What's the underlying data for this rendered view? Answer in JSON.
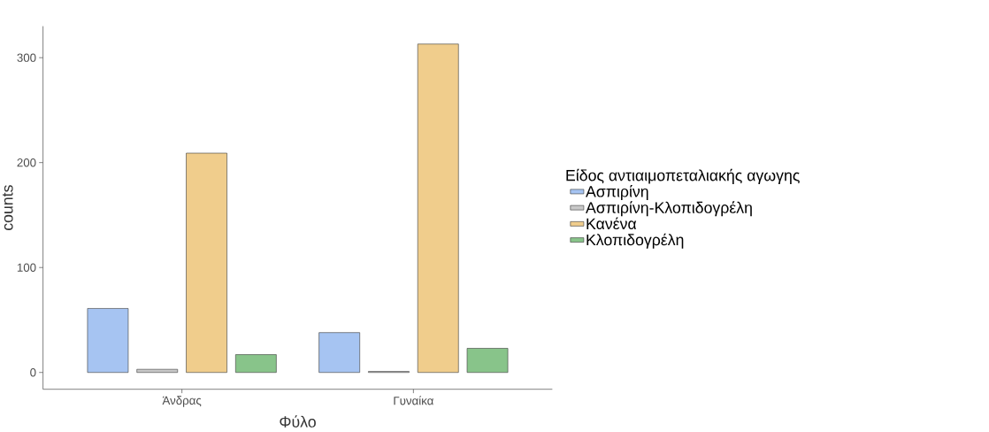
{
  "chart_data": {
    "type": "bar",
    "xlabel": "Φύλο",
    "ylabel": "counts",
    "legend_title": "Είδος αντιαιμοπεταλιακής αγωγης",
    "categories": [
      "Άνδρας",
      "Γυναίκα"
    ],
    "series": [
      {
        "name": "Ασπιρίνη",
        "color": "#a6c4f2",
        "values": [
          61,
          38
        ]
      },
      {
        "name": "Ασπιρίνη-Κλοπιδογρέλη",
        "color": "#c8c8c8",
        "values": [
          3,
          1
        ]
      },
      {
        "name": "Κανένα",
        "color": "#f0cd8c",
        "values": [
          209,
          313
        ]
      },
      {
        "name": "Κλοπιδογρέλη",
        "color": "#88c48a",
        "values": [
          17,
          23
        ]
      }
    ],
    "ylim": [
      -16,
      330
    ],
    "yticks": [
      0,
      100,
      200,
      300
    ],
    "grid": false,
    "legend": "right"
  }
}
